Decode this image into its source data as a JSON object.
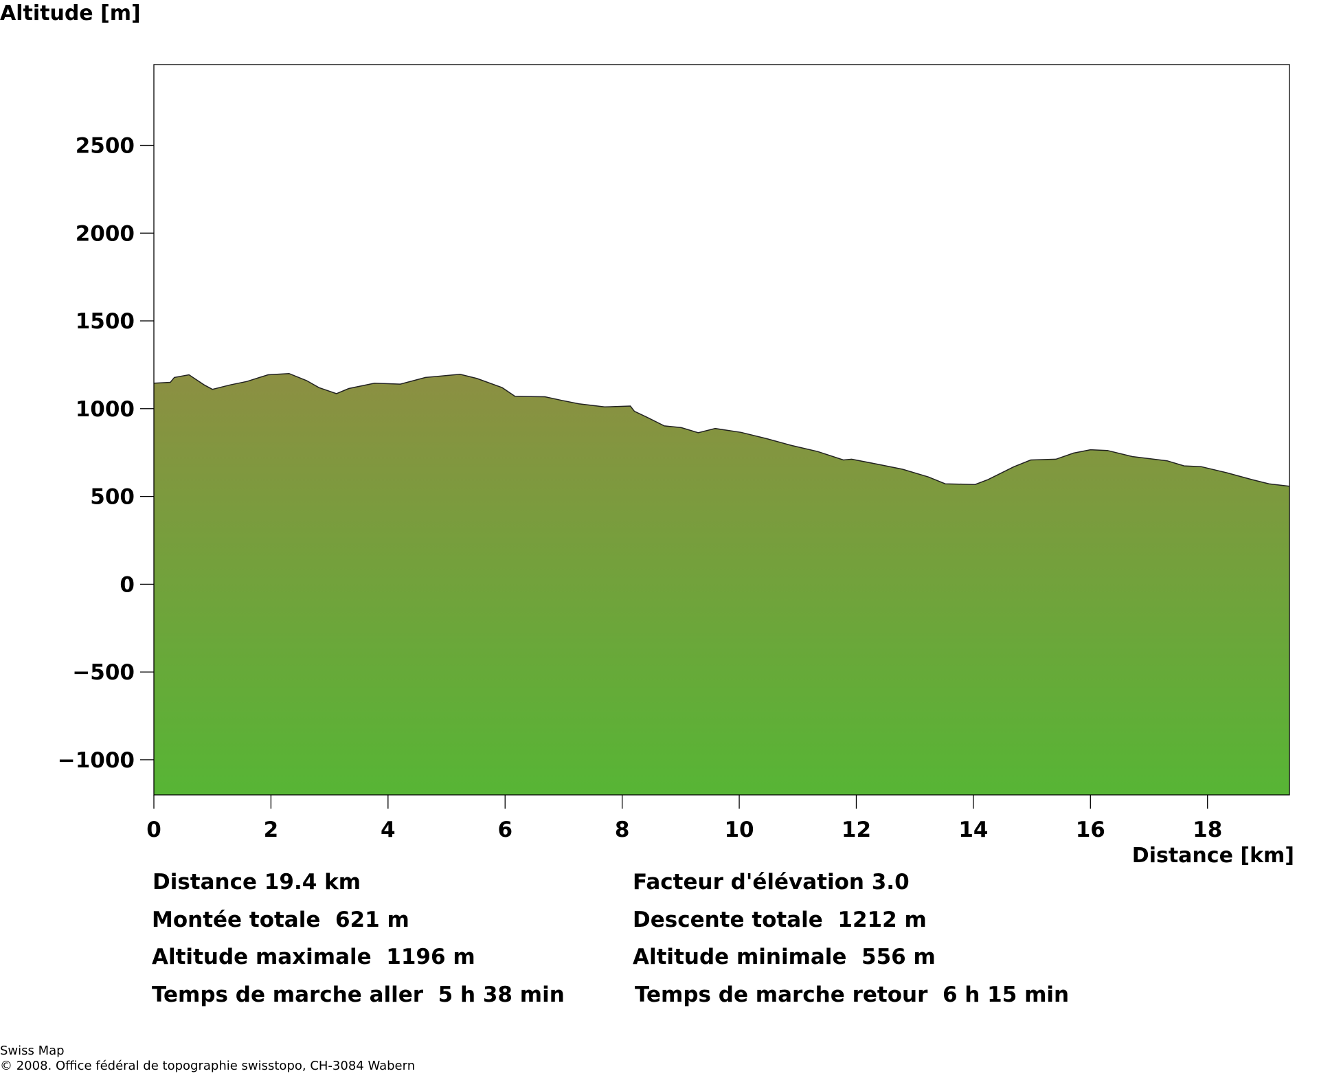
{
  "chart_data": {
    "type": "area",
    "ylabel": "Altitude [m]",
    "xlabel": "Distance [km]",
    "xlim": [
      0,
      19.4
    ],
    "ylim": [
      -1200,
      2960
    ],
    "xticks": [
      0,
      2,
      4,
      6,
      8,
      10,
      12,
      14,
      16,
      18
    ],
    "yticks": [
      -1000,
      -500,
      0,
      500,
      1000,
      1500,
      2000,
      2500
    ],
    "grid": false,
    "colors": {
      "fill_top": "#8c8f42",
      "fill_bottom": "#57b535",
      "line": "#222222"
    },
    "profile": [
      [
        0,
        1145
      ],
      [
        0.28,
        1150
      ],
      [
        0.35,
        1178
      ],
      [
        0.6,
        1193
      ],
      [
        0.86,
        1135
      ],
      [
        1.0,
        1110
      ],
      [
        1.3,
        1135
      ],
      [
        1.59,
        1155
      ],
      [
        1.95,
        1193
      ],
      [
        2.31,
        1200
      ],
      [
        2.61,
        1160
      ],
      [
        2.82,
        1120
      ],
      [
        3.12,
        1086
      ],
      [
        3.33,
        1115
      ],
      [
        3.77,
        1145
      ],
      [
        4.21,
        1140
      ],
      [
        4.64,
        1178
      ],
      [
        5.23,
        1196
      ],
      [
        5.52,
        1172
      ],
      [
        5.95,
        1120
      ],
      [
        6.17,
        1070
      ],
      [
        6.68,
        1068
      ],
      [
        6.97,
        1047
      ],
      [
        7.26,
        1028
      ],
      [
        7.7,
        1010
      ],
      [
        8.14,
        1015
      ],
      [
        8.21,
        985
      ],
      [
        8.43,
        950
      ],
      [
        8.72,
        902
      ],
      [
        9.01,
        892
      ],
      [
        9.3,
        863
      ],
      [
        9.59,
        887
      ],
      [
        10.03,
        865
      ],
      [
        10.47,
        829
      ],
      [
        10.9,
        790
      ],
      [
        11.34,
        756
      ],
      [
        11.78,
        708
      ],
      [
        11.92,
        712
      ],
      [
        12.36,
        684
      ],
      [
        12.79,
        655
      ],
      [
        13.23,
        611
      ],
      [
        13.52,
        572
      ],
      [
        14.03,
        568
      ],
      [
        14.25,
        596
      ],
      [
        14.69,
        669
      ],
      [
        14.98,
        708
      ],
      [
        15.41,
        712
      ],
      [
        15.71,
        747
      ],
      [
        16.0,
        766
      ],
      [
        16.29,
        762
      ],
      [
        16.72,
        727
      ],
      [
        17.31,
        703
      ],
      [
        17.6,
        674
      ],
      [
        17.89,
        670
      ],
      [
        18.33,
        635
      ],
      [
        18.76,
        596
      ],
      [
        19.05,
        572
      ],
      [
        19.4,
        558
      ]
    ]
  },
  "stats": {
    "distance": "Distance 19.4 km",
    "elevation_factor": "Facteur d'élévation 3.0",
    "ascent": "Montée totale  621 m",
    "descent": "Descente totale  1212 m",
    "max_alt": "Altitude maximale  1196 m",
    "min_alt": "Altitude minimale  556 m",
    "time_out": "Temps de marche aller  5 h 38 min",
    "time_back": "Temps de marche retour  6 h 15 min"
  },
  "footer": {
    "line1": "Swiss Map",
    "line2": "© 2008. Office fédéral de topographie swisstopo, CH-3084 Wabern"
  }
}
